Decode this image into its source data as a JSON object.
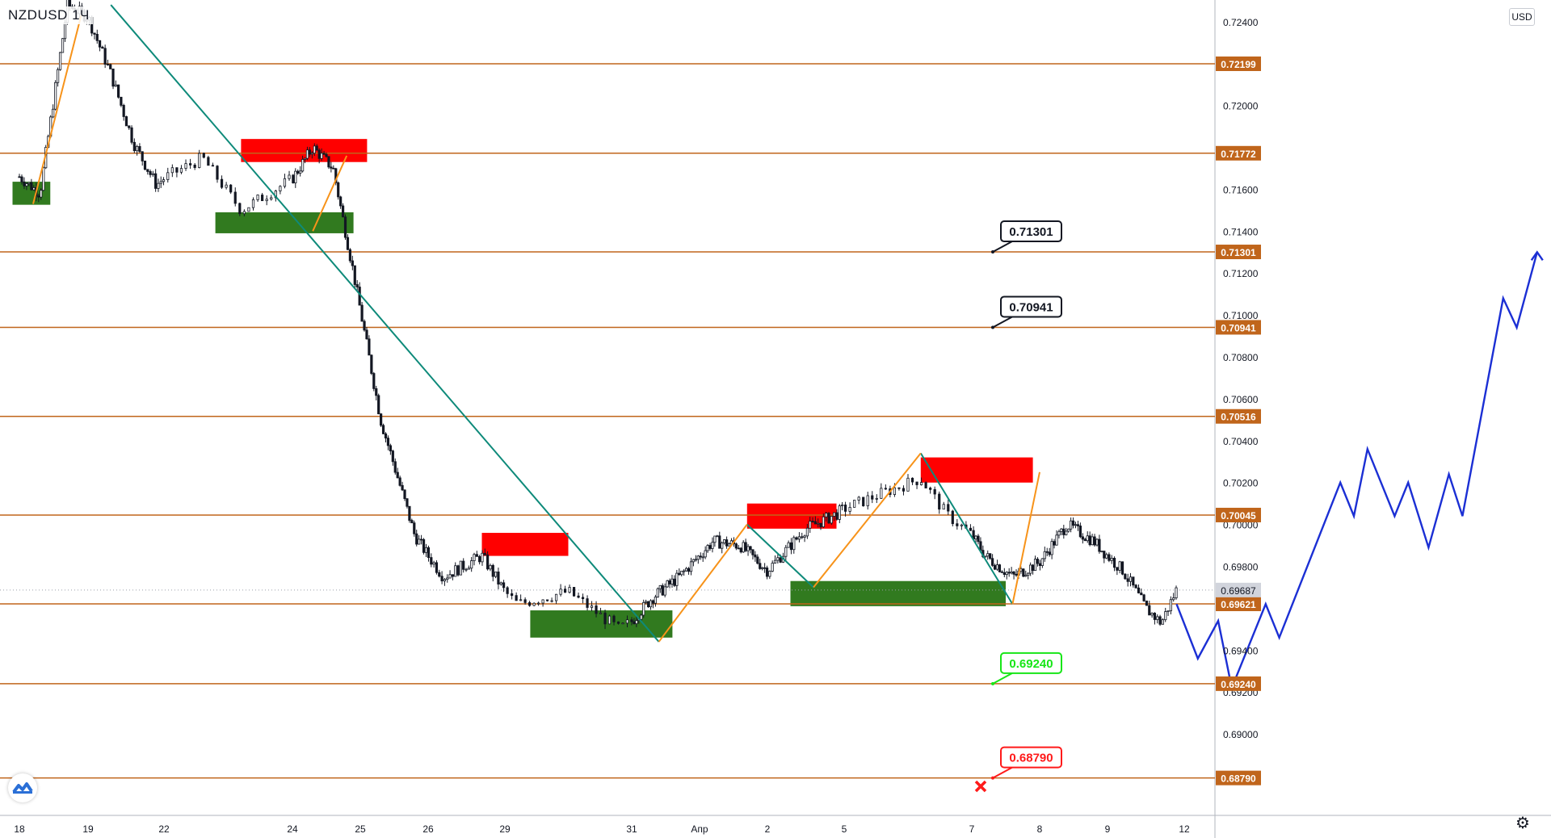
{
  "header": {
    "symbol": "NZDUSD",
    "interval": "1Ч",
    "currency": "USD",
    "top_partial_price": "0.72599"
  },
  "icons": {
    "logo": "tradingview-cloud-icon",
    "settings": "gear-icon",
    "invalidation": "cross-icon"
  },
  "colors": {
    "level_line": "#c0651b",
    "level_tag_bg": "#c0651b",
    "wave_up": "#f7931a",
    "wave_down": "#0e8a7a",
    "supply_zone": "#ff0000",
    "demand_zone": "#317a1f",
    "forecast": "#1b2fd4",
    "candle": "#131722",
    "target_label_border": "#131722",
    "support_label": "#17e617",
    "stop_label": "#ff1a1a",
    "current_price_tag": "#9ba0ab"
  },
  "chart_data": {
    "type": "candlestick",
    "title": "",
    "xlabel": "",
    "ylabel": "",
    "ylim": [
      0.6844,
      0.7262
    ],
    "y_axis_ticks": [
      "0.72400",
      "0.72000",
      "0.71600",
      "0.71400",
      "0.71200",
      "0.71000",
      "0.70800",
      "0.70600",
      "0.70400",
      "0.70200",
      "0.70000",
      "0.69800",
      "0.69400",
      "0.69200",
      "0.69000"
    ],
    "x_axis_ticks": [
      "18",
      "19",
      "22",
      "24",
      "25",
      "26",
      "29",
      "31",
      "Апр",
      "2",
      "5",
      "7",
      "8",
      "9",
      "12"
    ],
    "grid": false,
    "horizontal_levels": [
      0.72199,
      0.71772,
      0.71301,
      0.70941,
      0.70516,
      0.70045,
      0.69621,
      0.6924,
      0.6879
    ],
    "level_labels": [
      "0.72199",
      "0.71772",
      "0.71301",
      "0.70941",
      "0.70516",
      "0.70045",
      "0.69621",
      "0.69240",
      "0.68790"
    ],
    "current_price": 0.69687,
    "current_price_label": "0.69687",
    "price_path": [
      [
        0,
        0.7166
      ],
      [
        0.3,
        0.7158
      ],
      [
        0.7,
        0.7248
      ],
      [
        1.0,
        0.7242
      ],
      [
        1.3,
        0.7215
      ],
      [
        1.6,
        0.7182
      ],
      [
        1.9,
        0.7162
      ],
      [
        2.3,
        0.7175
      ],
      [
        2.6,
        0.715
      ],
      [
        3.0,
        0.7165
      ],
      [
        3.3,
        0.718
      ],
      [
        3.6,
        0.717
      ],
      [
        3.9,
        0.712
      ],
      [
        4.3,
        0.705
      ],
      [
        4.8,
        0.6995
      ],
      [
        5.2,
        0.6975
      ],
      [
        5.7,
        0.6985
      ],
      [
        6.1,
        0.6962
      ],
      [
        6.5,
        0.6968
      ],
      [
        6.9,
        0.695
      ],
      [
        7.3,
        0.6965
      ],
      [
        7.7,
        0.6975
      ],
      [
        8.2,
        0.6992
      ],
      [
        8.6,
        0.699
      ],
      [
        9.0,
        0.6978
      ],
      [
        9.5,
        0.6998
      ],
      [
        9.9,
        0.7005
      ],
      [
        10.3,
        0.7015
      ],
      [
        10.6,
        0.7022
      ],
      [
        10.8,
        0.7005
      ],
      [
        11.2,
        0.6985
      ],
      [
        11.6,
        0.6975
      ],
      [
        12.0,
        0.6982
      ],
      [
        12.4,
        0.7
      ],
      [
        12.8,
        0.6992
      ],
      [
        13.2,
        0.6978
      ],
      [
        13.5,
        0.696
      ],
      [
        13.7,
        0.6953
      ],
      [
        13.9,
        0.6969
      ]
    ],
    "demand_zones": [
      {
        "x0": -0.1,
        "x1": 0.45,
        "y0": 0.71526,
        "y1": 0.71636
      },
      {
        "x0": 2.4,
        "x1": 3.9,
        "y0": 0.7139,
        "y1": 0.7149
      },
      {
        "x0": 6.2,
        "x1": 7.6,
        "y0": 0.6946,
        "y1": 0.6959
      },
      {
        "x0": 9.3,
        "x1": 11.5,
        "y0": 0.6961,
        "y1": 0.6973
      }
    ],
    "supply_zones": [
      {
        "x0": 2.6,
        "x1": 4.1,
        "y0": 0.7173,
        "y1": 0.7184
      },
      {
        "x0": 5.7,
        "x1": 6.5,
        "y0": 0.6985,
        "y1": 0.6996
      },
      {
        "x0": 8.7,
        "x1": 9.9,
        "y0": 0.6998,
        "y1": 0.701
      },
      {
        "x0": 10.6,
        "x1": 11.9,
        "y0": 0.702,
        "y1": 0.7032
      }
    ],
    "waves_up": [
      [
        [
          0.2,
          0.7153
        ],
        [
          0.9,
          0.7243
        ]
      ],
      [
        [
          3.3,
          0.714
        ],
        [
          3.8,
          0.7176
        ]
      ],
      [
        [
          7.4,
          0.6944
        ],
        [
          8.7,
          0.7
        ]
      ],
      [
        [
          9.6,
          0.697
        ],
        [
          10.6,
          0.7034
        ]
      ],
      [
        [
          11.6,
          0.6962
        ],
        [
          12.0,
          0.7025
        ]
      ]
    ],
    "waves_down": [
      [
        [
          1.3,
          0.7248
        ],
        [
          7.4,
          0.6944
        ]
      ],
      [
        [
          8.7,
          0.7
        ],
        [
          9.6,
          0.697
        ]
      ],
      [
        [
          10.6,
          0.7034
        ],
        [
          11.6,
          0.6962
        ]
      ]
    ],
    "forecast_path": [
      [
        13.9,
        0.6962
      ],
      [
        14.2,
        0.6936
      ],
      [
        14.5,
        0.6954
      ],
      [
        14.7,
        0.6922
      ],
      [
        15.2,
        0.6962
      ],
      [
        15.4,
        0.6946
      ],
      [
        16.3,
        0.702
      ],
      [
        16.5,
        0.7004
      ],
      [
        16.7,
        0.7036
      ],
      [
        17.1,
        0.7004
      ],
      [
        17.3,
        0.702
      ],
      [
        17.6,
        0.6989
      ],
      [
        17.9,
        0.7024
      ],
      [
        18.1,
        0.7004
      ],
      [
        18.7,
        0.7108
      ],
      [
        18.9,
        0.7094
      ],
      [
        19.2,
        0.713
      ]
    ],
    "forecast_arrow_price": 0.713,
    "callouts": [
      {
        "label": "0.71301",
        "price": 0.71301,
        "kind": "target"
      },
      {
        "label": "0.70941",
        "price": 0.70941,
        "kind": "target"
      },
      {
        "label": "0.69240",
        "price": 0.6924,
        "kind": "support"
      },
      {
        "label": "0.68790",
        "price": 0.6879,
        "kind": "stop"
      }
    ],
    "stop_marker_price": 0.6875
  }
}
